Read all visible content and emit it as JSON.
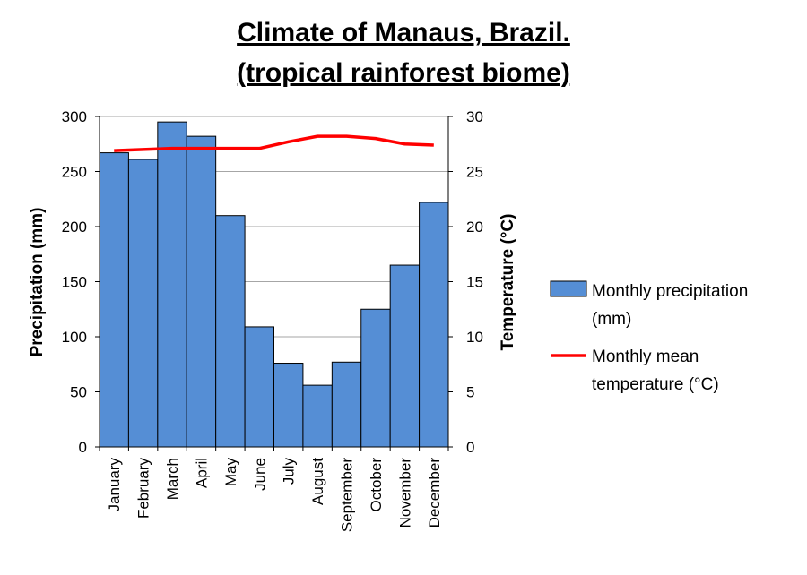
{
  "chart_data": {
    "type": "bar",
    "title_lines": [
      "Climate of Manaus, Brazil.",
      "(tropical rainforest biome)"
    ],
    "categories": [
      "January",
      "February",
      "March",
      "April",
      "May",
      "June",
      "July",
      "August",
      "September",
      "October",
      "November",
      "December"
    ],
    "series": [
      {
        "name": "Monthly precipitation (mm)",
        "legend_lines": [
          "Monthly precipitation",
          "(mm)"
        ],
        "type": "bar",
        "axis": "left",
        "values": [
          267,
          261,
          295,
          282,
          210,
          109,
          76,
          56,
          77,
          125,
          165,
          222
        ]
      },
      {
        "name": "Monthly mean temperature (°C)",
        "legend_lines": [
          "Monthly mean",
          "temperature (°C)"
        ],
        "type": "line",
        "axis": "right",
        "values": [
          26.9,
          27.0,
          27.1,
          27.1,
          27.1,
          27.1,
          27.7,
          28.2,
          28.2,
          28.0,
          27.5,
          27.4
        ]
      }
    ],
    "ylabel": "Precipitation (mm)",
    "y2label": "Temperature (°C)",
    "ylim": [
      0,
      300
    ],
    "y2lim": [
      0,
      30
    ],
    "yticks": [
      0,
      50,
      100,
      150,
      200,
      250,
      300
    ],
    "y2ticks": [
      0,
      5,
      10,
      15,
      20,
      25,
      30
    ],
    "grid": true,
    "legend_position": "right",
    "colors": {
      "bar": "#558ed5",
      "bar_edge": "#000000",
      "line": "#ff0000",
      "grid": "#a6a6a6"
    }
  }
}
